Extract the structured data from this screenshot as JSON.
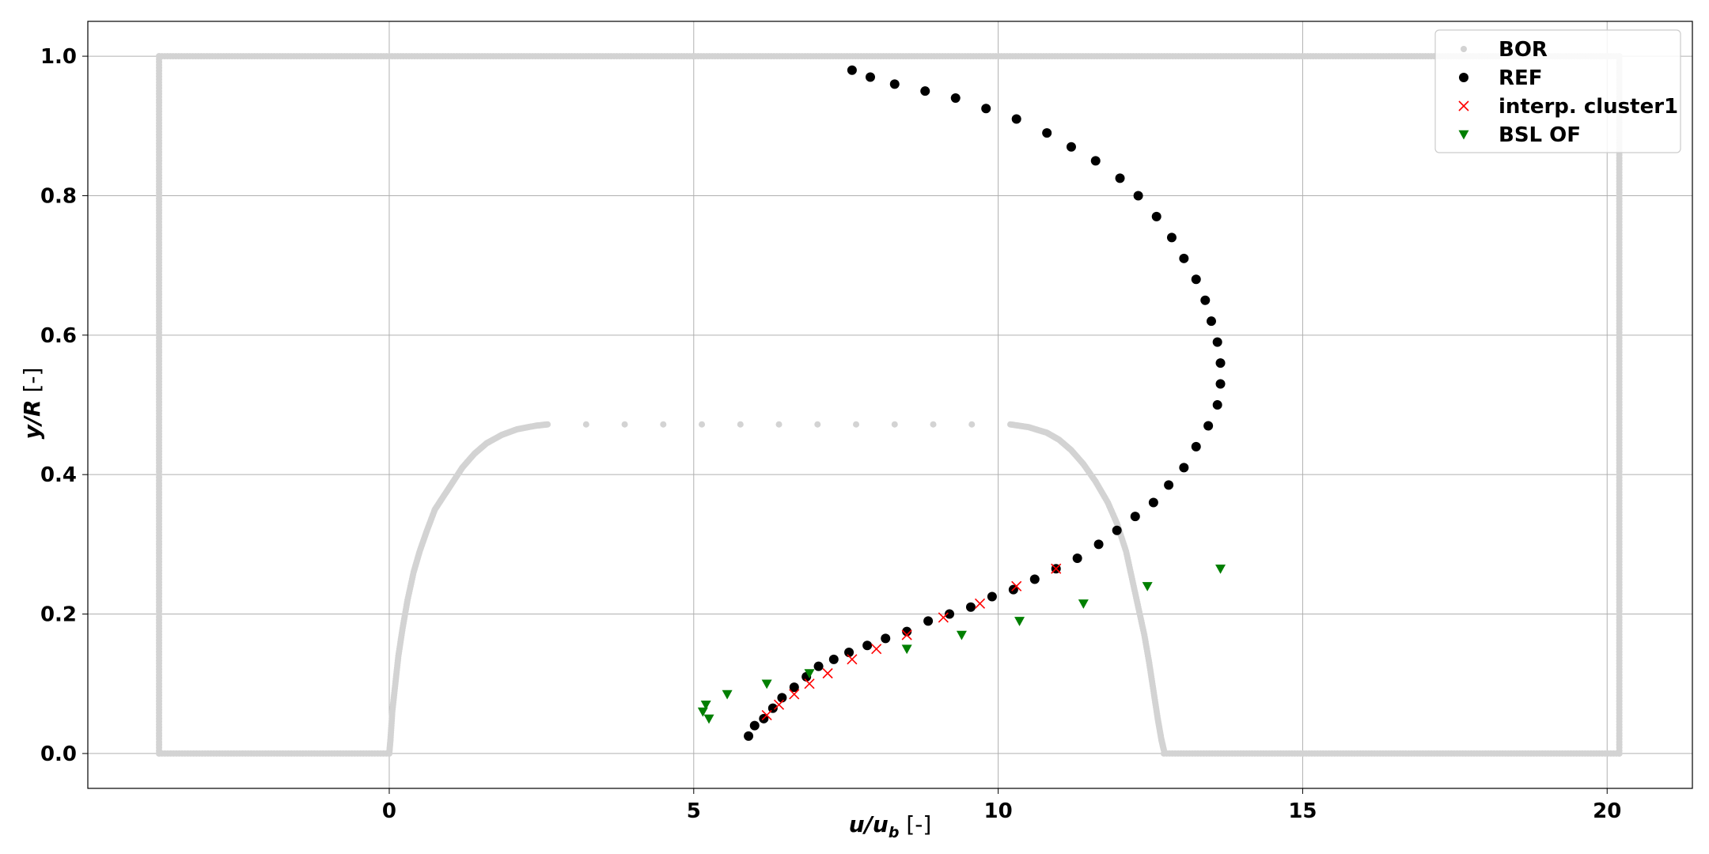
{
  "chart_data": {
    "type": "scatter",
    "title": "",
    "xlabel": {
      "main": "u/u",
      "sub": "b",
      "unit": " [-]"
    },
    "ylabel": {
      "main": "y/R",
      "unit": " [-]"
    },
    "xlim": [
      -4.95,
      21.4
    ],
    "ylim": [
      -0.05,
      1.05
    ],
    "xticks": [
      0,
      5,
      10,
      15,
      20
    ],
    "yticks": [
      0.0,
      0.2,
      0.4,
      0.6,
      0.8,
      1.0
    ],
    "xtick_labels": [
      "0",
      "5",
      "10",
      "15",
      "20"
    ],
    "ytick_labels": [
      "0.0",
      "0.2",
      "0.4",
      "0.6",
      "0.8",
      "1.0"
    ],
    "grid": true,
    "legend_position": "top-right",
    "series": [
      {
        "name": "BOR",
        "marker": "circle-small",
        "color": "#d3d3d3",
        "shape": "rounded-profile",
        "x": [
          0.0,
          0.02,
          0.05,
          0.1,
          0.15,
          0.22,
          0.3,
          0.4,
          0.5,
          0.62,
          0.75,
          0.9,
          1.05,
          1.2,
          1.4,
          1.6,
          1.85,
          2.1,
          2.4,
          2.6,
          10.2,
          10.5,
          10.8,
          11.0,
          11.2,
          11.4,
          11.6,
          11.8,
          11.95,
          12.1,
          12.2,
          12.3,
          12.4,
          12.48,
          12.55,
          12.62,
          12.68,
          12.72
        ],
        "y": [
          0.0,
          0.02,
          0.06,
          0.1,
          0.14,
          0.18,
          0.22,
          0.26,
          0.29,
          0.32,
          0.35,
          0.37,
          0.39,
          0.41,
          0.43,
          0.445,
          0.457,
          0.465,
          0.47,
          0.472,
          0.472,
          0.468,
          0.46,
          0.45,
          0.435,
          0.415,
          0.39,
          0.36,
          0.33,
          0.29,
          0.25,
          0.21,
          0.17,
          0.13,
          0.09,
          0.05,
          0.02,
          0.005
        ],
        "outer_x": [
          -3.78,
          20.2
        ],
        "outer_y": [
          0.0,
          1.0
        ]
      },
      {
        "name": "REF",
        "marker": "circle",
        "color": "#000000",
        "x": [
          5.9,
          6.0,
          6.15,
          6.3,
          6.45,
          6.65,
          6.85,
          7.05,
          7.3,
          7.55,
          7.85,
          8.15,
          8.5,
          8.85,
          9.2,
          9.55,
          9.9,
          10.25,
          10.6,
          10.95,
          11.3,
          11.65,
          11.95,
          12.25,
          12.55,
          12.8,
          13.05,
          13.25,
          13.45,
          13.6,
          13.65,
          13.65,
          13.6,
          13.5,
          13.4,
          13.25,
          13.05,
          12.85,
          12.6,
          12.3,
          12.0,
          11.6,
          11.2,
          10.8,
          10.3,
          9.8,
          9.3,
          8.8,
          8.3,
          7.9,
          7.6
        ],
        "y": [
          0.025,
          0.04,
          0.05,
          0.065,
          0.08,
          0.095,
          0.11,
          0.125,
          0.135,
          0.145,
          0.155,
          0.165,
          0.175,
          0.19,
          0.2,
          0.21,
          0.225,
          0.235,
          0.25,
          0.265,
          0.28,
          0.3,
          0.32,
          0.34,
          0.36,
          0.385,
          0.41,
          0.44,
          0.47,
          0.5,
          0.53,
          0.56,
          0.59,
          0.62,
          0.65,
          0.68,
          0.71,
          0.74,
          0.77,
          0.8,
          0.825,
          0.85,
          0.87,
          0.89,
          0.91,
          0.925,
          0.94,
          0.95,
          0.96,
          0.97,
          0.98
        ]
      },
      {
        "name": "interp. cluster1",
        "marker": "x",
        "color": "#ff0000",
        "x": [
          6.2,
          6.4,
          6.65,
          6.9,
          7.2,
          7.6,
          8.0,
          8.5,
          9.1,
          9.7,
          10.3,
          10.95
        ],
        "y": [
          0.055,
          0.07,
          0.085,
          0.1,
          0.115,
          0.135,
          0.15,
          0.17,
          0.195,
          0.215,
          0.24,
          0.265
        ]
      },
      {
        "name": "BSL OF",
        "marker": "triangle-down",
        "color": "#007f00",
        "x": [
          5.15,
          5.2,
          5.25,
          5.55,
          6.2,
          6.9,
          8.5,
          9.4,
          10.35,
          11.4,
          12.45,
          13.65
        ],
        "y": [
          0.06,
          0.07,
          0.05,
          0.085,
          0.1,
          0.115,
          0.15,
          0.17,
          0.19,
          0.215,
          0.24,
          0.265
        ]
      }
    ]
  }
}
